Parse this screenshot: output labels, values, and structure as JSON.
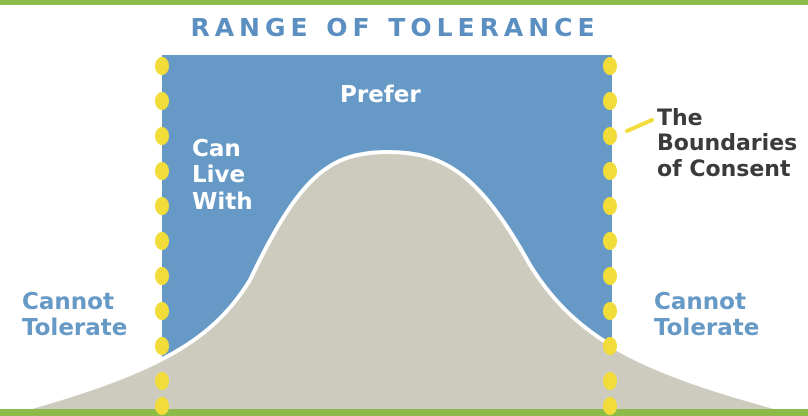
{
  "title": "RANGE OF TOLERANCE",
  "labels": {
    "prefer": "Prefer",
    "can_live_with": [
      "Can",
      "Live",
      "With"
    ],
    "cannot_tolerate_left": [
      "Cannot",
      "Tolerate"
    ],
    "cannot_tolerate_right": [
      "Cannot",
      "Tolerate"
    ],
    "boundaries": [
      "The",
      "Boundaries",
      "of Consent"
    ]
  },
  "colors": {
    "green_bar": "#8cbb4a",
    "title_blue": "#5b8fc2",
    "range_blue": "#6699c6",
    "curve_fill": "#cdcbbd",
    "boundary_yellow": "#f2dc3a",
    "dark_text": "#3b3b3b",
    "white": "#ffffff"
  }
}
